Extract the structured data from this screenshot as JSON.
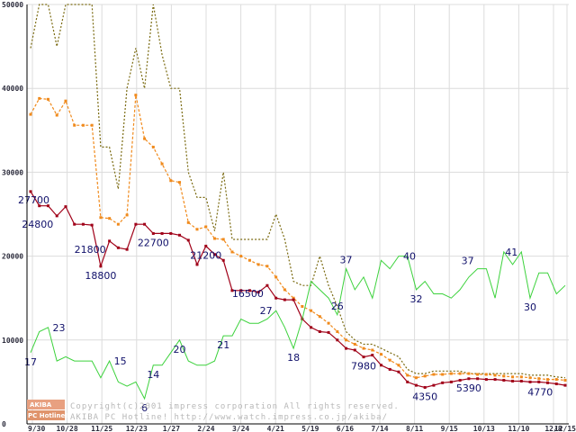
{
  "chart_data": {
    "type": "line",
    "title": "",
    "xlabel": "",
    "ylabel": "",
    "ylim": [
      0,
      50000
    ],
    "y_ticks": [
      "0",
      "10000",
      "20000",
      "30000",
      "40000",
      "50000"
    ],
    "x_tick_labels": [
      "9/30",
      "10/28",
      "11/25",
      "12/23",
      "1/27",
      "2/24",
      "3/24",
      "4/21",
      "5/19",
      "6/16",
      "7/14",
      "8/11",
      "9/15",
      "10/13",
      "11/10",
      "12/8",
      "12/15"
    ],
    "grid": true,
    "colors": {
      "price_max": "#7a6a10",
      "price_avg": "#f08a1c",
      "price_min": "#a00018",
      "shop_count": "#3cd23c",
      "axis": "#000000",
      "grid": "#dcdcdc",
      "label": "#10106a"
    },
    "series": [
      {
        "name": "price_max",
        "style": "dotted",
        "values": [
          [
            0,
            44800
          ],
          [
            1,
            50000
          ],
          [
            2,
            50000
          ],
          [
            3,
            45000
          ],
          [
            4,
            50000
          ],
          [
            5,
            50000
          ],
          [
            6,
            50000
          ],
          [
            7,
            50000
          ],
          [
            8,
            33000
          ],
          [
            9,
            33000
          ],
          [
            10,
            28000
          ],
          [
            11,
            40000
          ],
          [
            12,
            44800
          ],
          [
            13,
            40000
          ],
          [
            14,
            50000
          ],
          [
            15,
            44000
          ],
          [
            16,
            40000
          ],
          [
            17,
            40000
          ],
          [
            18,
            30000
          ],
          [
            19,
            27000
          ],
          [
            20,
            27000
          ],
          [
            21,
            23000
          ],
          [
            22,
            30000
          ],
          [
            23,
            22000
          ],
          [
            24,
            22000
          ],
          [
            25,
            22000
          ],
          [
            26,
            22000
          ],
          [
            27,
            22000
          ],
          [
            28,
            25000
          ],
          [
            29,
            22000
          ],
          [
            30,
            17000
          ],
          [
            31,
            16500
          ],
          [
            32,
            16500
          ],
          [
            33,
            20000
          ],
          [
            34,
            16500
          ],
          [
            35,
            14000
          ],
          [
            36,
            11000
          ],
          [
            37,
            10000
          ],
          [
            38,
            9500
          ],
          [
            39,
            9500
          ],
          [
            40,
            9000
          ],
          [
            41,
            8500
          ],
          [
            42,
            8000
          ],
          [
            43,
            6500
          ],
          [
            44,
            6000
          ],
          [
            45,
            6000
          ],
          [
            46,
            6300
          ],
          [
            47,
            6300
          ],
          [
            48,
            6300
          ],
          [
            49,
            6300
          ],
          [
            50,
            6000
          ],
          [
            51,
            6000
          ],
          [
            52,
            6000
          ],
          [
            53,
            6000
          ],
          [
            54,
            6000
          ],
          [
            55,
            6000
          ],
          [
            56,
            6000
          ],
          [
            57,
            5800
          ],
          [
            58,
            5800
          ],
          [
            59,
            5800
          ],
          [
            60,
            5600
          ],
          [
            61,
            5500
          ]
        ]
      },
      {
        "name": "price_avg",
        "style": "dashed-squares",
        "values": [
          [
            0,
            36900
          ],
          [
            1,
            38800
          ],
          [
            2,
            38700
          ],
          [
            3,
            36800
          ],
          [
            4,
            38500
          ],
          [
            5,
            35600
          ],
          [
            6,
            35600
          ],
          [
            7,
            35600
          ],
          [
            8,
            24600
          ],
          [
            9,
            24500
          ],
          [
            10,
            23800
          ],
          [
            11,
            24900
          ],
          [
            12,
            39200
          ],
          [
            13,
            34000
          ],
          [
            14,
            33000
          ],
          [
            15,
            31000
          ],
          [
            16,
            29000
          ],
          [
            17,
            28800
          ],
          [
            18,
            24000
          ],
          [
            19,
            23200
          ],
          [
            20,
            23500
          ],
          [
            21,
            22100
          ],
          [
            22,
            22000
          ],
          [
            23,
            20500
          ],
          [
            24,
            20000
          ],
          [
            25,
            19500
          ],
          [
            26,
            19000
          ],
          [
            27,
            18800
          ],
          [
            28,
            17500
          ],
          [
            29,
            16000
          ],
          [
            30,
            15000
          ],
          [
            31,
            14000
          ],
          [
            32,
            13500
          ],
          [
            33,
            12800
          ],
          [
            34,
            12000
          ],
          [
            35,
            11000
          ],
          [
            36,
            10000
          ],
          [
            37,
            9500
          ],
          [
            38,
            9000
          ],
          [
            39,
            8800
          ],
          [
            40,
            8300
          ],
          [
            41,
            7600
          ],
          [
            42,
            7000
          ],
          [
            43,
            5800
          ],
          [
            44,
            5500
          ],
          [
            45,
            5700
          ],
          [
            46,
            5900
          ],
          [
            47,
            5900
          ],
          [
            48,
            6000
          ],
          [
            49,
            6000
          ],
          [
            50,
            6000
          ],
          [
            51,
            5900
          ],
          [
            52,
            5900
          ],
          [
            53,
            5800
          ],
          [
            54,
            5700
          ],
          [
            55,
            5600
          ],
          [
            56,
            5600
          ],
          [
            57,
            5500
          ],
          [
            58,
            5400
          ],
          [
            59,
            5300
          ],
          [
            60,
            5300
          ],
          [
            61,
            5200
          ]
        ]
      },
      {
        "name": "price_min",
        "style": "solid-squares",
        "values": [
          [
            0,
            27700
          ],
          [
            1,
            26000
          ],
          [
            2,
            26000
          ],
          [
            3,
            24800
          ],
          [
            4,
            25900
          ],
          [
            5,
            23800
          ],
          [
            6,
            23800
          ],
          [
            7,
            23700
          ],
          [
            8,
            18800
          ],
          [
            9,
            21800
          ],
          [
            10,
            21000
          ],
          [
            11,
            20800
          ],
          [
            12,
            23800
          ],
          [
            13,
            23800
          ],
          [
            14,
            22700
          ],
          [
            15,
            22700
          ],
          [
            16,
            22700
          ],
          [
            17,
            22500
          ],
          [
            18,
            21900
          ],
          [
            19,
            19000
          ],
          [
            20,
            21200
          ],
          [
            21,
            20200
          ],
          [
            22,
            19500
          ],
          [
            23,
            15900
          ],
          [
            24,
            15900
          ],
          [
            25,
            15900
          ],
          [
            26,
            15700
          ],
          [
            27,
            16500
          ],
          [
            28,
            15000
          ],
          [
            29,
            14800
          ],
          [
            30,
            14800
          ],
          [
            31,
            12500
          ],
          [
            32,
            11500
          ],
          [
            33,
            11000
          ],
          [
            34,
            10900
          ],
          [
            35,
            10000
          ],
          [
            36,
            9000
          ],
          [
            37,
            8800
          ],
          [
            38,
            7980
          ],
          [
            39,
            8200
          ],
          [
            40,
            7000
          ],
          [
            41,
            6500
          ],
          [
            42,
            6200
          ],
          [
            43,
            5000
          ],
          [
            44,
            4600
          ],
          [
            45,
            4350
          ],
          [
            46,
            4600
          ],
          [
            47,
            4900
          ],
          [
            48,
            5000
          ],
          [
            49,
            5200
          ],
          [
            50,
            5390
          ],
          [
            51,
            5390
          ],
          [
            52,
            5300
          ],
          [
            53,
            5300
          ],
          [
            54,
            5200
          ],
          [
            55,
            5100
          ],
          [
            56,
            5100
          ],
          [
            57,
            5000
          ],
          [
            58,
            5000
          ],
          [
            59,
            4900
          ],
          [
            60,
            4770
          ],
          [
            61,
            4600
          ]
        ]
      },
      {
        "name": "shop_count",
        "style": "solid",
        "values": [
          [
            0,
            17
          ],
          [
            1,
            22
          ],
          [
            2,
            23
          ],
          [
            3,
            15
          ],
          [
            4,
            16
          ],
          [
            5,
            15
          ],
          [
            6,
            15
          ],
          [
            7,
            15
          ],
          [
            8,
            11
          ],
          [
            9,
            15
          ],
          [
            10,
            10
          ],
          [
            11,
            9
          ],
          [
            12,
            10
          ],
          [
            13,
            6
          ],
          [
            14,
            14
          ],
          [
            15,
            14
          ],
          [
            16,
            17
          ],
          [
            17,
            20
          ],
          [
            18,
            15
          ],
          [
            19,
            14
          ],
          [
            20,
            14
          ],
          [
            21,
            15
          ],
          [
            22,
            21
          ],
          [
            23,
            21
          ],
          [
            24,
            25
          ],
          [
            25,
            24
          ],
          [
            26,
            24
          ],
          [
            27,
            25
          ],
          [
            28,
            27
          ],
          [
            29,
            23
          ],
          [
            30,
            18
          ],
          [
            31,
            25
          ],
          [
            32,
            34
          ],
          [
            33,
            32
          ],
          [
            34,
            30
          ],
          [
            35,
            26
          ],
          [
            36,
            37
          ],
          [
            37,
            32
          ],
          [
            38,
            35
          ],
          [
            39,
            30
          ],
          [
            40,
            39
          ],
          [
            41,
            37
          ],
          [
            42,
            40
          ],
          [
            43,
            40
          ],
          [
            44,
            32
          ],
          [
            45,
            34
          ],
          [
            46,
            31
          ],
          [
            47,
            31
          ],
          [
            48,
            30
          ],
          [
            49,
            32
          ],
          [
            50,
            35
          ],
          [
            51,
            37
          ],
          [
            52,
            37
          ],
          [
            53,
            30
          ],
          [
            54,
            41
          ],
          [
            55,
            38
          ],
          [
            56,
            41
          ],
          [
            57,
            30
          ],
          [
            58,
            36
          ],
          [
            59,
            36
          ],
          [
            60,
            31
          ],
          [
            61,
            33
          ]
        ]
      }
    ],
    "shop_count_scale": 500,
    "annotations": [
      {
        "series": "price_min",
        "i": 0,
        "text": "27700",
        "pos": "below-left"
      },
      {
        "series": "price_min",
        "i": 3,
        "text": "24800",
        "pos": "below-left"
      },
      {
        "series": "price_min",
        "i": 8,
        "text": "18800",
        "pos": "below"
      },
      {
        "series": "price_min",
        "i": 9,
        "text": "21800",
        "pos": "below-left"
      },
      {
        "series": "price_min",
        "i": 14,
        "text": "22700",
        "pos": "below"
      },
      {
        "series": "price_min",
        "i": 20,
        "text": "21200",
        "pos": "below"
      },
      {
        "series": "price_min",
        "i": 27,
        "text": "16500",
        "pos": "below-left"
      },
      {
        "series": "price_min",
        "i": 38,
        "text": "7980",
        "pos": "below"
      },
      {
        "series": "price_min",
        "i": 45,
        "text": "4350",
        "pos": "below"
      },
      {
        "series": "price_min",
        "i": 50,
        "text": "5390",
        "pos": "below"
      },
      {
        "series": "price_min",
        "i": 60,
        "text": "4770",
        "pos": "below-left"
      },
      {
        "series": "shop_count",
        "i": 0,
        "text": "17",
        "pos": "below"
      },
      {
        "series": "shop_count",
        "i": 2,
        "text": "23",
        "pos": "right"
      },
      {
        "series": "shop_count",
        "i": 9,
        "text": "15",
        "pos": "right"
      },
      {
        "series": "shop_count",
        "i": 13,
        "text": "6",
        "pos": "below"
      },
      {
        "series": "shop_count",
        "i": 14,
        "text": "14",
        "pos": "below"
      },
      {
        "series": "shop_count",
        "i": 17,
        "text": "20",
        "pos": "below"
      },
      {
        "series": "shop_count",
        "i": 22,
        "text": "21",
        "pos": "below"
      },
      {
        "series": "shop_count",
        "i": 28,
        "text": "27",
        "pos": "left"
      },
      {
        "series": "shop_count",
        "i": 30,
        "text": "18",
        "pos": "below"
      },
      {
        "series": "shop_count",
        "i": 35,
        "text": "26",
        "pos": "above"
      },
      {
        "series": "shop_count",
        "i": 36,
        "text": "37",
        "pos": "above"
      },
      {
        "series": "shop_count",
        "i": 42,
        "text": "40",
        "pos": "right"
      },
      {
        "series": "shop_count",
        "i": 44,
        "text": "32",
        "pos": "below"
      },
      {
        "series": "shop_count",
        "i": 51,
        "text": "37",
        "pos": "above-left"
      },
      {
        "series": "shop_count",
        "i": 56,
        "text": "41",
        "pos": "left"
      },
      {
        "series": "shop_count",
        "i": 57,
        "text": "30",
        "pos": "below"
      }
    ]
  },
  "logo": {
    "line1": "AKIBA",
    "line2": "PC Hotline!"
  },
  "credits": {
    "line1": "Copyright(c)2001 impress corporation All rights reserved.",
    "line2": "AKIBA PC Hotline!  http://www.watch.impress.co.jp/akiba/"
  }
}
